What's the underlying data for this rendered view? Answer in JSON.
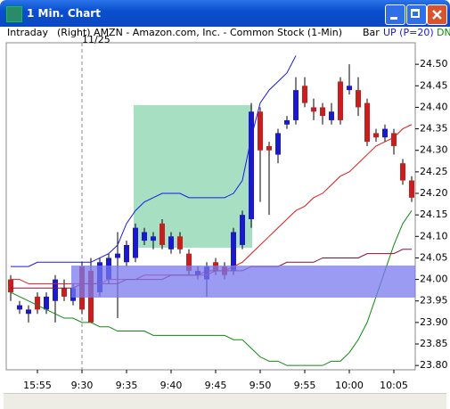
{
  "window": {
    "title": "1 Min. Chart"
  },
  "header": {
    "mode": "Intraday",
    "symbol": "(Right) AMZN - Amazon.com, Inc. - Common Stock (1-Min)",
    "style": "Bar",
    "up": "UP (P=20)",
    "down": "DN"
  },
  "chart_data": {
    "type": "candlestick",
    "date_label": "11/25",
    "categories": [
      null,
      null,
      null,
      "15:55",
      null,
      null,
      null,
      null,
      "9:30",
      null,
      null,
      null,
      null,
      "9:35",
      null,
      null,
      null,
      null,
      "9:40",
      null,
      null,
      null,
      null,
      "9:45",
      null,
      null,
      null,
      null,
      "9:50",
      null,
      null,
      null,
      null,
      "9:55",
      null,
      null,
      null,
      null,
      "10:00",
      null,
      null,
      null,
      null,
      "10:05",
      null,
      null
    ],
    "open": [
      24.0,
      23.93,
      23.92,
      23.96,
      23.93,
      23.95,
      23.98,
      23.95,
      24.03,
      24.02,
      23.97,
      24.0,
      24.05,
      24.04,
      24.05,
      24.09,
      24.09,
      24.13,
      24.07,
      24.1,
      24.06,
      24.01,
      24.0,
      24.04,
      24.03,
      24.02,
      24.08,
      24.14,
      24.39,
      24.31,
      24.29,
      24.36,
      24.37,
      24.45,
      24.4,
      24.4,
      24.37,
      24.46,
      24.44,
      24.44,
      24.41,
      24.34,
      24.33,
      24.34,
      24.27,
      24.23
    ],
    "high": [
      24.01,
      23.95,
      23.94,
      23.97,
      23.97,
      24.01,
      24.0,
      23.99,
      24.04,
      24.05,
      24.05,
      24.06,
      24.11,
      24.09,
      24.13,
      24.12,
      24.11,
      24.14,
      24.11,
      24.11,
      24.07,
      24.03,
      24.04,
      24.05,
      24.04,
      24.12,
      24.16,
      24.41,
      24.4,
      24.32,
      24.35,
      24.38,
      24.47,
      24.47,
      24.42,
      24.41,
      24.41,
      24.47,
      24.5,
      24.47,
      24.42,
      24.35,
      24.36,
      24.35,
      24.28,
      24.24
    ],
    "low": [
      23.95,
      23.92,
      23.9,
      23.92,
      23.92,
      23.9,
      23.95,
      23.94,
      23.92,
      23.9,
      23.96,
      23.99,
      23.91,
      24.03,
      24.04,
      24.08,
      24.07,
      24.07,
      24.06,
      24.06,
      24.01,
      24.0,
      23.96,
      24.01,
      24.0,
      24.01,
      24.07,
      24.12,
      24.18,
      24.15,
      24.27,
      24.35,
      24.36,
      24.4,
      24.37,
      24.36,
      24.36,
      24.36,
      24.43,
      24.38,
      24.31,
      24.32,
      24.32,
      24.29,
      24.22,
      24.18
    ],
    "close": [
      23.97,
      23.94,
      23.93,
      23.93,
      23.96,
      24.0,
      23.96,
      23.98,
      23.93,
      23.9,
      24.04,
      24.05,
      24.06,
      24.08,
      24.12,
      24.11,
      24.1,
      24.08,
      24.1,
      24.07,
      24.02,
      24.02,
      24.03,
      24.02,
      24.01,
      24.11,
      24.15,
      24.39,
      24.3,
      24.3,
      24.34,
      24.37,
      24.44,
      24.41,
      24.39,
      24.38,
      24.39,
      24.37,
      24.45,
      24.4,
      24.32,
      24.33,
      24.35,
      24.31,
      24.23,
      24.19
    ],
    "up_color": "#1a1acc",
    "down_color": "#c81e1e",
    "wick_color": "#000000",
    "lines": [
      {
        "color": "#1a1ae0",
        "values": [
          24.03,
          24.03,
          24.03,
          24.04,
          24.04,
          24.04,
          24.04,
          24.04,
          24.04,
          24.04,
          24.05,
          24.06,
          24.08,
          24.13,
          24.16,
          24.18,
          24.19,
          24.2,
          24.2,
          24.2,
          24.19,
          24.19,
          24.19,
          24.19,
          24.19,
          24.2,
          24.23,
          24.33,
          24.41,
          24.44,
          24.46,
          24.48,
          24.52,
          null,
          null,
          null,
          null,
          null,
          null,
          null,
          null,
          null,
          null,
          null,
          null,
          null
        ]
      },
      {
        "color": "#e01a1a",
        "values": [
          24.0,
          24.0,
          23.99,
          23.99,
          23.99,
          23.99,
          23.99,
          23.99,
          23.99,
          23.99,
          23.99,
          24.0,
          24.0,
          24.0,
          24.0,
          24.01,
          24.01,
          24.01,
          24.01,
          24.01,
          24.01,
          24.01,
          24.01,
          24.02,
          24.02,
          24.03,
          24.04,
          24.06,
          24.08,
          24.1,
          24.12,
          24.14,
          24.16,
          24.17,
          24.19,
          24.2,
          24.22,
          24.24,
          24.25,
          24.27,
          24.29,
          24.31,
          24.32,
          24.33,
          24.35,
          24.36
        ]
      },
      {
        "color": "#118811",
        "values": [
          23.97,
          23.96,
          23.95,
          23.94,
          23.93,
          23.92,
          23.91,
          23.91,
          23.9,
          23.9,
          23.89,
          23.89,
          23.88,
          23.88,
          23.88,
          23.88,
          23.87,
          23.87,
          23.87,
          23.87,
          23.87,
          23.87,
          23.87,
          23.87,
          23.87,
          23.86,
          23.86,
          23.84,
          23.82,
          23.81,
          23.81,
          23.8,
          23.8,
          23.8,
          23.8,
          23.8,
          23.81,
          23.81,
          23.83,
          23.86,
          23.9,
          23.96,
          24.02,
          24.08,
          24.13,
          24.16
        ]
      },
      {
        "color": "#8b1030",
        "values": [
          23.98,
          23.98,
          23.98,
          23.98,
          23.98,
          23.98,
          23.98,
          23.98,
          23.99,
          23.99,
          23.99,
          23.99,
          23.99,
          24.0,
          24.0,
          24.0,
          24.0,
          24.0,
          24.01,
          24.01,
          24.01,
          24.01,
          24.02,
          24.02,
          24.02,
          24.02,
          24.02,
          24.03,
          24.03,
          24.03,
          24.03,
          24.04,
          24.04,
          24.04,
          24.04,
          24.05,
          24.05,
          24.05,
          24.05,
          24.05,
          24.06,
          24.06,
          24.06,
          24.06,
          24.07,
          24.07
        ]
      }
    ],
    "ylim": [
      23.79,
      24.55
    ],
    "yticks": [
      {
        "value": 23.8,
        "label": "23.80"
      },
      23.85,
      {
        "value": 23.9,
        "label": "23.90"
      },
      23.95,
      {
        "value": 24.0,
        "label": "24.00"
      },
      24.05,
      {
        "value": 24.1,
        "label": "24.10"
      },
      24.15,
      {
        "value": 24.2,
        "label": "24.20"
      },
      24.25,
      {
        "value": 24.3,
        "label": "24.30"
      },
      24.35,
      {
        "value": 24.4,
        "label": "24.40"
      },
      24.45,
      {
        "value": 24.5,
        "label": "24.50"
      }
    ]
  }
}
